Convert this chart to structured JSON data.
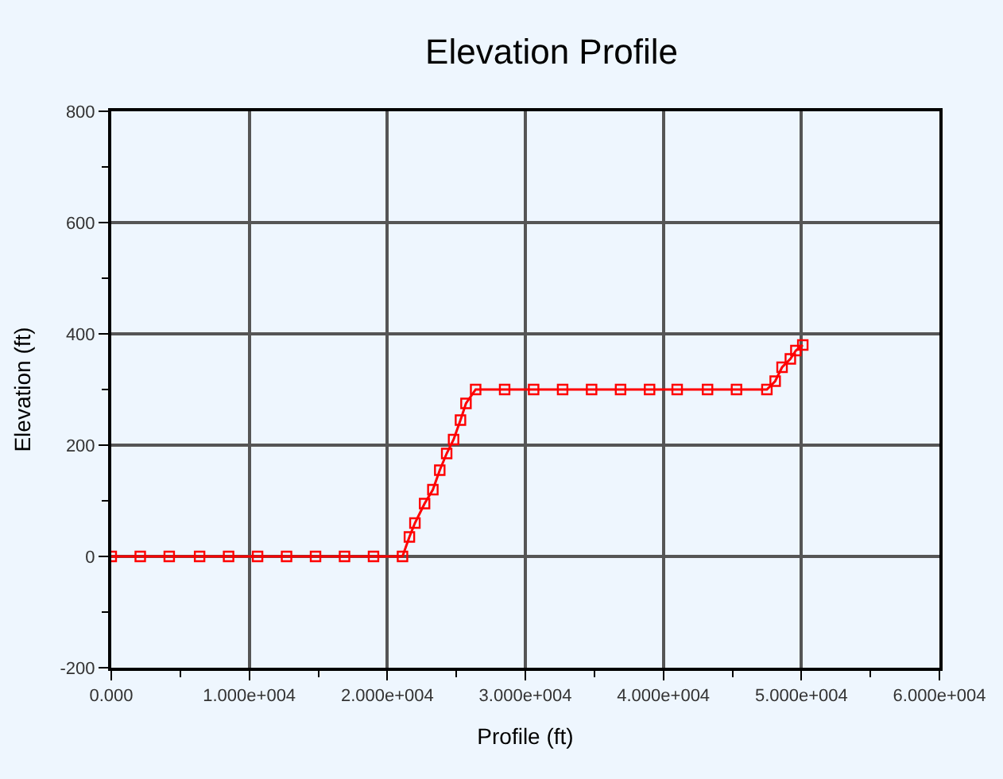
{
  "chart_data": {
    "type": "line",
    "title": "Elevation Profile",
    "xlabel": "Profile (ft)",
    "ylabel": "Elevation (ft)",
    "series": [
      {
        "color": "#ff0000",
        "x": [
          0,
          2100,
          4200,
          6400,
          8500,
          10600,
          12700,
          14800,
          16900,
          19000,
          21100,
          21600,
          22000,
          22700,
          23300,
          23800,
          24300,
          24800,
          25300,
          25700,
          26400,
          28500,
          30600,
          32700,
          34800,
          36900,
          39000,
          41000,
          43200,
          45300,
          47500,
          48100,
          48600,
          49200,
          49600,
          50100
        ],
        "values": [
          0,
          0,
          0,
          0,
          0,
          0,
          0,
          0,
          0,
          0,
          0,
          35,
          60,
          95,
          120,
          155,
          185,
          210,
          245,
          275,
          300,
          300,
          300,
          300,
          300,
          300,
          300,
          300,
          300,
          300,
          300,
          315,
          340,
          355,
          370,
          380
        ]
      }
    ],
    "xlim": [
      0,
      60000
    ],
    "ylim": [
      -200,
      800
    ],
    "xticks": [
      {
        "value": 0,
        "label": "0.000"
      },
      {
        "value": 10000,
        "label": "1.000e+004"
      },
      {
        "value": 20000,
        "label": "2.000e+004"
      },
      {
        "value": 30000,
        "label": "3.000e+004"
      },
      {
        "value": 40000,
        "label": "4.000e+004"
      },
      {
        "value": 50000,
        "label": "5.000e+004"
      },
      {
        "value": 60000,
        "label": "6.000e+004"
      }
    ],
    "yticks": [
      -200,
      0,
      200,
      400,
      600,
      800
    ],
    "grid": true,
    "marker": "square",
    "line_style": "solid"
  }
}
